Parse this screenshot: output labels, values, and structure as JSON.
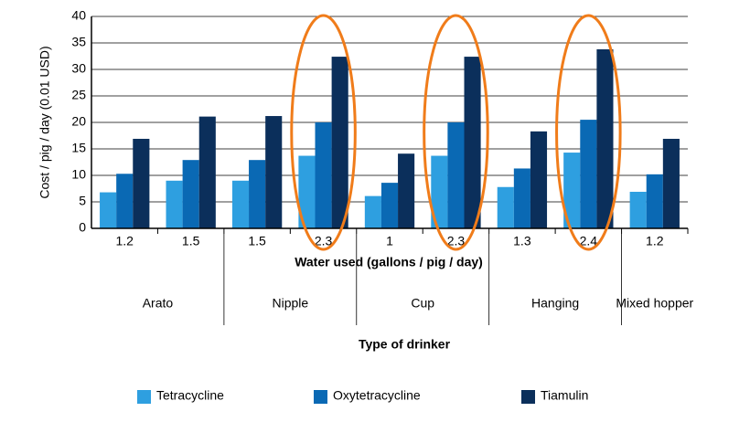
{
  "chart_data": {
    "type": "bar",
    "y_label": "Cost / pig / day (0.01 USD)",
    "x_label": "Water used (gallons / pig / day)",
    "group_label": "Type of drinker",
    "groups": [
      {
        "name": "Arato",
        "categories": [
          "1.2",
          "1.5"
        ]
      },
      {
        "name": "Nipple",
        "categories": [
          "1.5",
          "2.3"
        ]
      },
      {
        "name": "Cup",
        "categories": [
          "1",
          "2.3"
        ]
      },
      {
        "name": "Hanging",
        "categories": [
          "1.3",
          "2.4"
        ]
      },
      {
        "name": "Mixed hopper",
        "categories": [
          "1.2"
        ]
      }
    ],
    "series": [
      {
        "name": "Tetracycline",
        "color": "#2e9fe0",
        "values": [
          6.8,
          9,
          9,
          13.7,
          6.1,
          13.7,
          7.8,
          14.3,
          6.9
        ]
      },
      {
        "name": "Oxytetracycline",
        "color": "#0a69b4",
        "values": [
          10.3,
          12.9,
          12.9,
          20,
          8.6,
          20,
          11.3,
          20.5,
          10.2
        ]
      },
      {
        "name": "Tiamulin",
        "color": "#0b2f5b",
        "values": [
          16.9,
          21.1,
          21.2,
          32.4,
          14.1,
          32.4,
          18.3,
          33.8,
          16.9
        ]
      }
    ],
    "ylim": [
      0,
      40
    ],
    "yticks": [
      0,
      5,
      10,
      15,
      20,
      25,
      30,
      35,
      40
    ],
    "grid": true
  }
}
